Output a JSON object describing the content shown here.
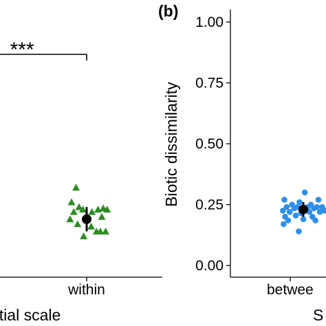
{
  "chart_data": [
    {
      "panel": "a",
      "type": "scatter",
      "xlabel": "Spatial scale",
      "xlabel_visible": "atial scale",
      "ylabel": "",
      "categories": [
        "within"
      ],
      "significance": "***",
      "series": [
        {
          "name": "",
          "marker": "triangle",
          "color": "#2e8b22",
          "points": [
            {
              "x": "within",
              "jitter": -0.14,
              "y": 0.32
            },
            {
              "x": "within",
              "jitter": -0.2,
              "y": 0.26
            },
            {
              "x": "within",
              "jitter": -0.1,
              "y": 0.24
            },
            {
              "x": "within",
              "jitter": -0.17,
              "y": 0.22
            },
            {
              "x": "within",
              "jitter": -0.05,
              "y": 0.23
            },
            {
              "x": "within",
              "jitter": 0.07,
              "y": 0.22
            },
            {
              "x": "within",
              "jitter": 0.15,
              "y": 0.23
            },
            {
              "x": "within",
              "jitter": 0.22,
              "y": 0.235
            },
            {
              "x": "within",
              "jitter": 0.27,
              "y": 0.23
            },
            {
              "x": "within",
              "jitter": -0.22,
              "y": 0.19
            },
            {
              "x": "within",
              "jitter": 0.2,
              "y": 0.2
            },
            {
              "x": "within",
              "jitter": -0.12,
              "y": 0.17
            },
            {
              "x": "within",
              "jitter": 0.06,
              "y": 0.16
            },
            {
              "x": "within",
              "jitter": 0.13,
              "y": 0.14
            },
            {
              "x": "within",
              "jitter": 0.18,
              "y": 0.14
            },
            {
              "x": "within",
              "jitter": 0.25,
              "y": 0.14
            },
            {
              "x": "within",
              "jitter": -0.04,
              "y": 0.12
            }
          ]
        }
      ],
      "summary": {
        "x": "within",
        "mean": 0.19,
        "lower": 0.14,
        "upper": 0.24,
        "color": "#000000"
      }
    },
    {
      "panel": "b",
      "type": "scatter",
      "panel_label": "(b)",
      "xlabel": "Spatial scale",
      "xlabel_visible": "S",
      "ylabel": "Biotic dissimilarity",
      "ylim": [
        0,
        1
      ],
      "yticks": [
        "0.00",
        "0.25",
        "0.50",
        "0.75",
        "1.00"
      ],
      "ytick_values": [
        0,
        0.25,
        0.5,
        0.75,
        1.0
      ],
      "categories": [
        "between"
      ],
      "category_labels_visible": [
        "betwee"
      ],
      "series": [
        {
          "name": "",
          "marker": "circle",
          "color": "#2f8fe8",
          "points": [
            {
              "x": "between",
              "jitter": 0.02,
              "y": 0.3
            },
            {
              "x": "between",
              "jitter": -0.25,
              "y": 0.27
            },
            {
              "x": "between",
              "jitter": -0.05,
              "y": 0.26
            },
            {
              "x": "between",
              "jitter": 0.2,
              "y": 0.27
            },
            {
              "x": "between",
              "jitter": -0.15,
              "y": 0.25
            },
            {
              "x": "between",
              "jitter": 0.1,
              "y": 0.25
            },
            {
              "x": "between",
              "jitter": -0.22,
              "y": 0.24
            },
            {
              "x": "between",
              "jitter": -0.12,
              "y": 0.235
            },
            {
              "x": "between",
              "jitter": -0.08,
              "y": 0.24
            },
            {
              "x": "between",
              "jitter": 0.06,
              "y": 0.24
            },
            {
              "x": "between",
              "jitter": 0.14,
              "y": 0.235
            },
            {
              "x": "between",
              "jitter": 0.18,
              "y": 0.24
            },
            {
              "x": "between",
              "jitter": 0.25,
              "y": 0.24
            },
            {
              "x": "between",
              "jitter": -0.27,
              "y": 0.225
            },
            {
              "x": "between",
              "jitter": -0.18,
              "y": 0.22
            },
            {
              "x": "between",
              "jitter": -0.03,
              "y": 0.215
            },
            {
              "x": "between",
              "jitter": 0.08,
              "y": 0.22
            },
            {
              "x": "between",
              "jitter": 0.22,
              "y": 0.22
            },
            {
              "x": "between",
              "jitter": 0.28,
              "y": 0.225
            },
            {
              "x": "between",
              "jitter": -0.24,
              "y": 0.2
            },
            {
              "x": "between",
              "jitter": -0.1,
              "y": 0.205
            },
            {
              "x": "between",
              "jitter": 0.12,
              "y": 0.2
            },
            {
              "x": "between",
              "jitter": -0.2,
              "y": 0.185
            },
            {
              "x": "between",
              "jitter": 0.0,
              "y": 0.19
            },
            {
              "x": "between",
              "jitter": 0.16,
              "y": 0.185
            },
            {
              "x": "between",
              "jitter": -0.26,
              "y": 0.17
            },
            {
              "x": "between",
              "jitter": -0.06,
              "y": 0.14
            }
          ]
        }
      ],
      "summary": {
        "x": "between",
        "mean": 0.23,
        "lower": 0.2,
        "upper": 0.26,
        "color": "#000000"
      }
    }
  ]
}
